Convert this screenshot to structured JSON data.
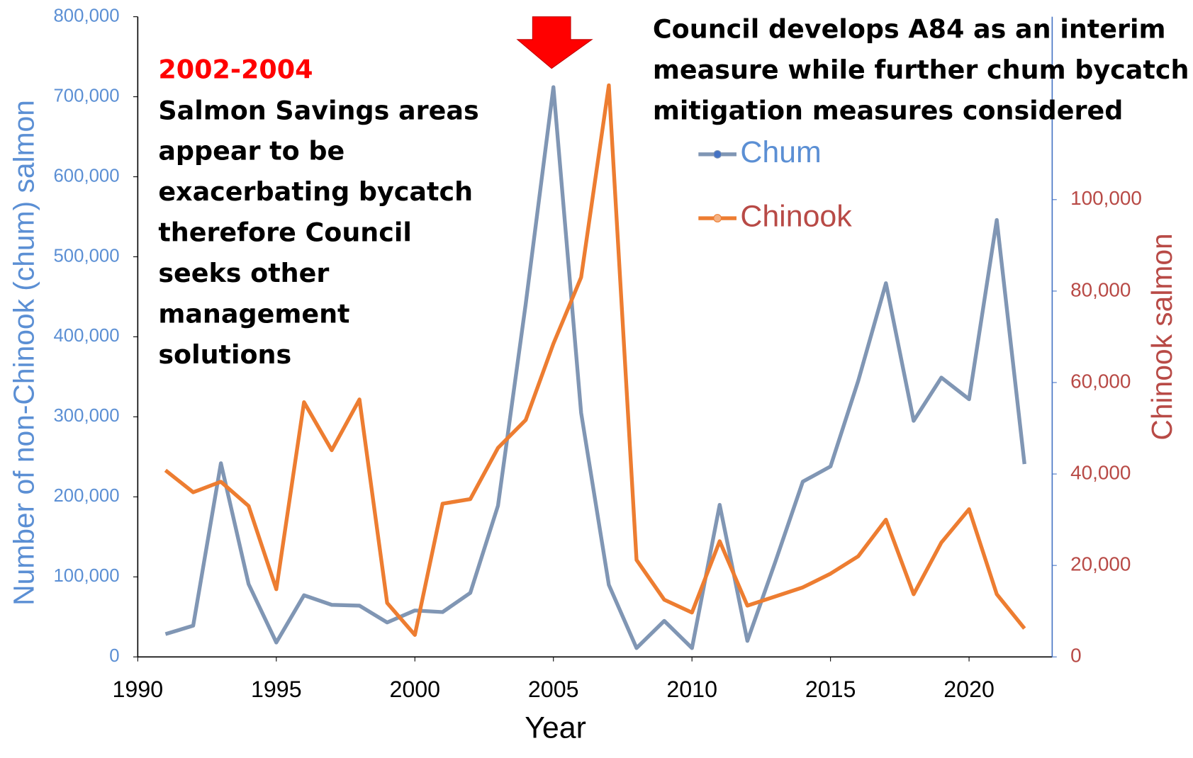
{
  "chart_data": {
    "type": "line",
    "x_label": "Year",
    "y_label": "Number of non-Chinook (chum) salmon",
    "y2_label": "Chinook salmon",
    "x": [
      1991,
      1992,
      1993,
      1994,
      1995,
      1996,
      1997,
      1998,
      1999,
      2000,
      2001,
      2002,
      2003,
      2004,
      2005,
      2006,
      2007,
      2008,
      2009,
      2010,
      2011,
      2012,
      2013,
      2014,
      2015,
      2016,
      2017,
      2018,
      2019,
      2020,
      2021,
      2022
    ],
    "series": [
      {
        "name": "Chum",
        "color": "#8096b4",
        "marker_color": "#4472c4",
        "text_color": "#5b8fd4",
        "axis": "y",
        "values": [
          28500,
          39000,
          242000,
          91000,
          18000,
          77000,
          65000,
          64000,
          43000,
          58000,
          56000,
          80000,
          189000,
          441000,
          712000,
          305000,
          90000,
          11000,
          45000,
          11000,
          190000,
          20000,
          118000,
          219000,
          238000,
          345000,
          467000,
          295000,
          349000,
          322000,
          546000,
          241000
        ]
      },
      {
        "name": "Chinook",
        "color": "#ed7d31",
        "marker_color": "#f4b183",
        "text_color": "#b84a46",
        "axis": "y2",
        "values": [
          40800,
          36000,
          38300,
          33000,
          14800,
          55700,
          45200,
          56300,
          11800,
          4800,
          33500,
          34500,
          45700,
          51800,
          68500,
          83000,
          125000,
          21200,
          12500,
          9700,
          25300,
          11200,
          13200,
          15200,
          18200,
          22000,
          30000,
          13700,
          25000,
          32300,
          13700,
          6200
        ]
      }
    ],
    "xlim": [
      1990,
      2023
    ],
    "xticks": [
      1990,
      1995,
      2000,
      2005,
      2010,
      2015,
      2020
    ],
    "ylim": [
      0,
      800000
    ],
    "yticks": [
      0,
      {
        "value": 100000,
        "label": "100,000"
      },
      {
        "value": 200000,
        "label": "200,000"
      },
      {
        "value": 300000,
        "label": "300,000"
      },
      {
        "value": 400000,
        "label": "400,000"
      },
      {
        "value": 500000,
        "label": "500,000"
      },
      {
        "value": 600000,
        "label": "600,000"
      },
      {
        "value": 700000,
        "label": "700,000"
      },
      {
        "value": 800000,
        "label": "800,000"
      }
    ],
    "y2lim": [
      0,
      140000
    ],
    "y2ticks": [
      0,
      {
        "value": 20000,
        "label": "20,000"
      },
      {
        "value": 40000,
        "label": "40,000"
      },
      {
        "value": 60000,
        "label": "60,000"
      },
      {
        "value": 80000,
        "label": "80,000"
      },
      {
        "value": 100000,
        "label": "100,000"
      }
    ],
    "annotations": [
      {
        "lines": [
          "2002-2004"
        ],
        "color": "#ff0000"
      },
      {
        "lines": [
          "Salmon Savings areas",
          "appear to be",
          "exacerbating bycatch",
          "therefore Council",
          "seeks other",
          "management",
          "solutions"
        ],
        "color": "#000000"
      },
      {
        "lines": [
          "Council develops A84 as an interim",
          "measure while further chum bycatch",
          "mitigation measures considered"
        ],
        "color": "#000000"
      }
    ]
  }
}
